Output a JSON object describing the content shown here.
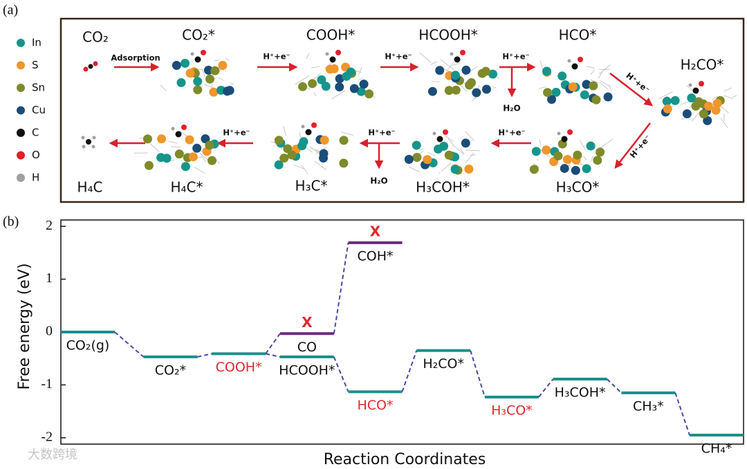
{
  "panel_a": {
    "tag": "(a)",
    "legend": [
      {
        "label": "In",
        "color": "#16958a"
      },
      {
        "label": "S",
        "color": "#f0962c"
      },
      {
        "label": "Sn",
        "color": "#7f8a2a"
      },
      {
        "label": "Cu",
        "color": "#1b4d78"
      },
      {
        "label": "C",
        "color": "#111111"
      },
      {
        "label": "O",
        "color": "#e3202c"
      },
      {
        "label": "H",
        "color": "#a0a0a0"
      }
    ],
    "species": [
      "CO₂",
      "CO₂*",
      "COOH*",
      "HCOOH*",
      "HCO*",
      "H₂CO*",
      "H₃CO*",
      "H₃COH*",
      "H₃C*",
      "H₄C*",
      "H₄C"
    ],
    "adsorption": "Adsorption",
    "arrow_labels": [
      "H⁺+e⁻",
      "H⁺+e⁻",
      "H⁺+e⁻",
      "H⁺+e⁻",
      "H⁺+e⁻",
      "H⁺+e⁻",
      "H⁺+e⁻",
      "H⁺+e⁻"
    ],
    "byproducts": [
      "H₂O",
      "H₂O"
    ]
  },
  "chart_data": {
    "type": "energy_levels",
    "tag": "(b)",
    "x_label": "Reaction Coordinates",
    "y_label": "Free energy (eV)",
    "ylim": [
      -2.12,
      2.12
    ],
    "yticks": [
      -2,
      -1,
      0,
      1,
      2
    ],
    "steps": [
      [
        {
          "label": "CO₂(g)",
          "value": 0,
          "color": "#1a8f8a",
          "label_color": "#111111"
        }
      ],
      [
        {
          "label": "CO₂*",
          "value": -0.47,
          "color": "#1a8f8a",
          "label_color": "#111111"
        }
      ],
      [
        {
          "label": "COOH*",
          "value": -0.41,
          "color": "#1a8f8a",
          "label_color": "#e0282e"
        }
      ],
      [
        {
          "label": "HCOOH*",
          "value": -0.47,
          "color": "#1a8f8a",
          "label_color": "#111111"
        },
        {
          "label": "CO",
          "value": -0.03,
          "color": "#6a2a80",
          "label_color": "#111111",
          "mark": "X"
        }
      ],
      [
        {
          "label": "HCO*",
          "value": -1.13,
          "color": "#1a8f8a",
          "label_color": "#e0282e"
        },
        {
          "label": "COH*",
          "value": 1.69,
          "color": "#6a2a80",
          "label_color": "#111111",
          "mark": "X"
        }
      ],
      [
        {
          "label": "H₂CO*",
          "value": -0.35,
          "color": "#1a8f8a",
          "label_color": "#111111"
        }
      ],
      [
        {
          "label": "H₃CO*",
          "value": -1.23,
          "color": "#1a8f8a",
          "label_color": "#e0282e"
        }
      ],
      [
        {
          "label": "H₃COH*",
          "value": -0.89,
          "color": "#1a8f8a",
          "label_color": "#111111"
        }
      ],
      [
        {
          "label": "CH₃*",
          "value": -1.15,
          "color": "#1a8f8a",
          "label_color": "#111111"
        }
      ],
      [
        {
          "label": "CH₄*",
          "value": -1.95,
          "color": "#1a8f8a",
          "label_color": "#111111"
        }
      ]
    ],
    "connector_color": "#4a48a0",
    "watermark": "大数跨境"
  }
}
